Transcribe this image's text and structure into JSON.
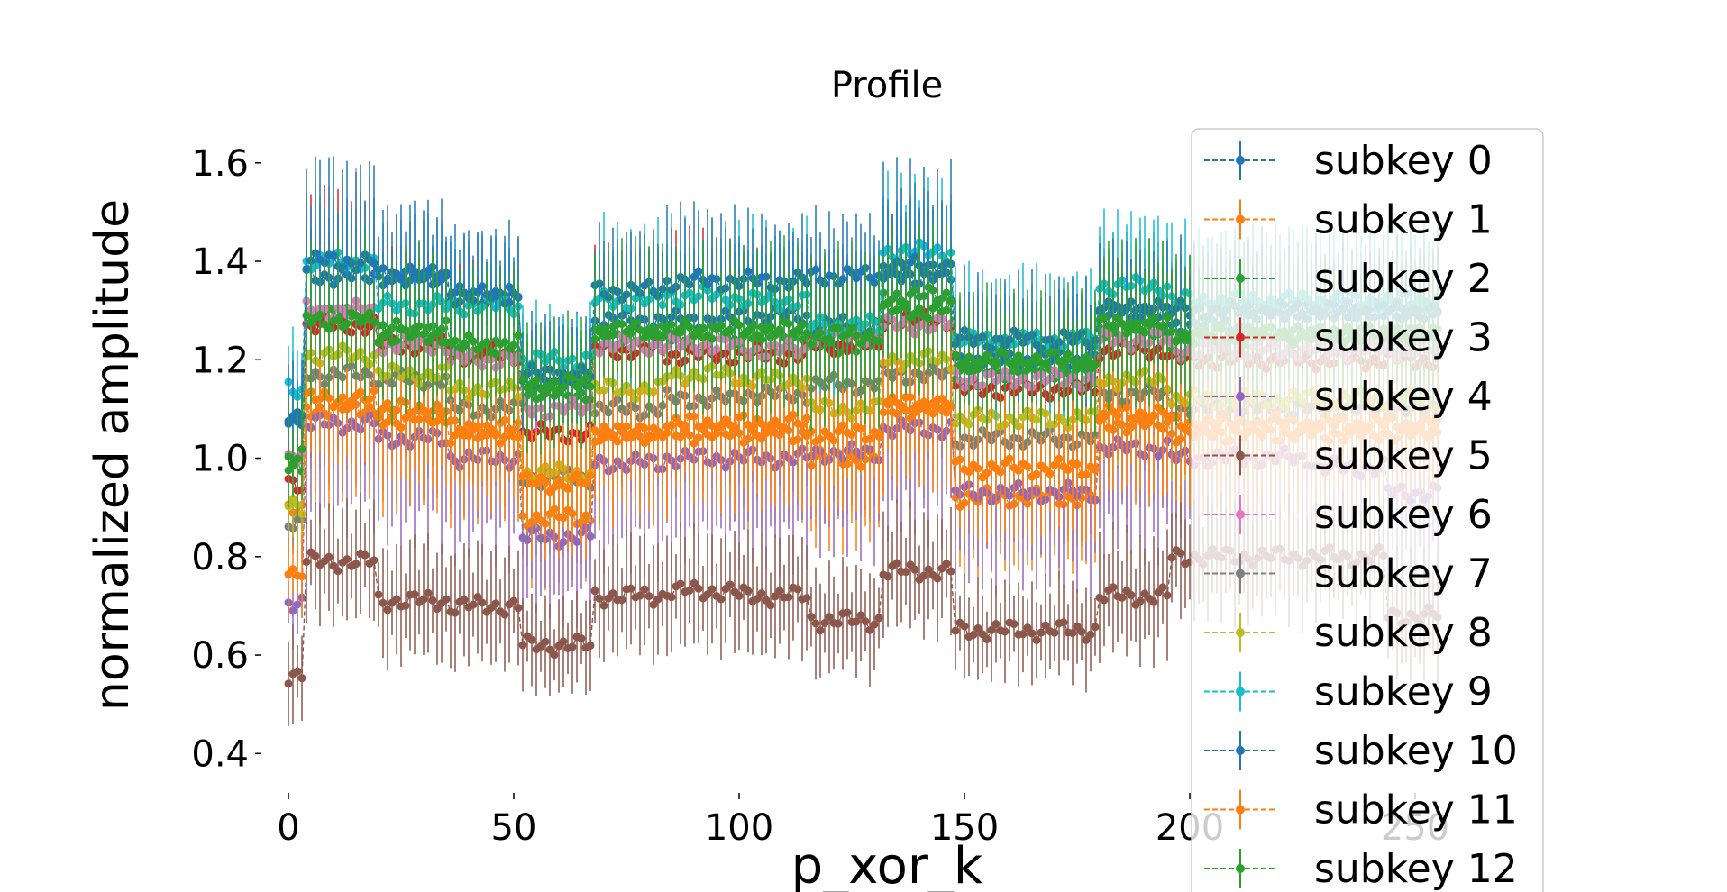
{
  "chart_data": {
    "type": "line",
    "title": "Profile",
    "xlabel": "p_xor_k",
    "ylabel": "normalized amplitude",
    "xlim": [
      -6,
      264
    ],
    "ylim": [
      0.32,
      1.66
    ],
    "xticks": [
      0,
      50,
      100,
      150,
      200,
      250
    ],
    "yticks": [
      0.4,
      0.6,
      0.8,
      1.0,
      1.2,
      1.4,
      1.6
    ],
    "grid": false,
    "legend_position": "upper-right",
    "x_breakpoints": [
      0,
      3,
      4,
      19,
      20,
      35,
      36,
      51,
      52,
      67,
      68,
      83,
      84,
      99,
      100,
      115,
      116,
      131,
      132,
      147,
      148,
      163,
      164,
      179,
      180,
      195,
      196,
      211,
      212,
      227,
      228,
      243,
      244,
      255
    ],
    "series": [
      {
        "name": "subkey 0",
        "color": "#1f77b4",
        "segment_values": [
          1.07,
          1.37,
          1.37,
          1.33,
          1.16,
          1.28,
          1.28,
          1.29,
          1.27,
          1.37,
          1.2,
          1.2,
          1.3,
          1.27,
          1.3,
          1.3,
          1.3
        ],
        "errors": [
          0.1,
          0.12,
          0.12,
          0.11,
          0.1,
          0.12,
          0.12,
          0.12,
          0.12,
          0.12,
          0.1,
          0.1,
          0.12,
          0.12,
          0.12,
          0.12,
          0.12
        ]
      },
      {
        "name": "subkey 1",
        "color": "#ff7f0e",
        "segment_values": [
          0.89,
          1.1,
          1.1,
          1.06,
          0.88,
          1.05,
          1.05,
          1.05,
          1.0,
          1.1,
          0.92,
          0.92,
          1.07,
          1.05,
          1.05,
          1.05,
          1.05
        ],
        "errors": [
          0.08,
          0.14,
          0.14,
          0.13,
          0.1,
          0.14,
          0.14,
          0.14,
          0.14,
          0.14,
          0.12,
          0.12,
          0.14,
          0.14,
          0.14,
          0.14,
          0.14
        ]
      },
      {
        "name": "subkey 2",
        "color": "#2ca02c",
        "segment_values": [
          0.98,
          1.29,
          1.26,
          1.22,
          1.13,
          1.25,
          1.25,
          1.25,
          1.23,
          1.33,
          1.18,
          1.18,
          1.26,
          1.24,
          1.25,
          1.25,
          1.25
        ],
        "errors": [
          0.1,
          0.13,
          0.13,
          0.12,
          0.1,
          0.13,
          0.13,
          0.13,
          0.13,
          0.13,
          0.11,
          0.11,
          0.13,
          0.13,
          0.13,
          0.13,
          0.13
        ]
      },
      {
        "name": "subkey 3",
        "color": "#d62728",
        "segment_values": [
          0.95,
          1.27,
          1.23,
          1.21,
          1.05,
          1.22,
          1.21,
          1.21,
          1.23,
          1.28,
          1.14,
          1.14,
          1.22,
          1.2,
          1.2,
          1.2,
          1.2
        ],
        "errors": [
          0.1,
          0.2,
          0.14,
          0.14,
          0.12,
          0.16,
          0.2,
          0.16,
          0.14,
          0.15,
          0.13,
          0.13,
          0.15,
          0.15,
          0.15,
          0.15,
          0.15
        ]
      },
      {
        "name": "subkey 4",
        "color": "#9467bd",
        "segment_values": [
          0.71,
          1.07,
          1.04,
          1.0,
          0.84,
          0.99,
          1.0,
          1.0,
          1.01,
          1.06,
          0.93,
          0.93,
          1.02,
          1.0,
          1.0,
          0.98,
          0.93
        ],
        "errors": [
          0.06,
          0.17,
          0.17,
          0.16,
          0.13,
          0.17,
          0.17,
          0.17,
          0.16,
          0.17,
          0.15,
          0.15,
          0.17,
          0.17,
          0.17,
          0.17,
          0.17
        ]
      },
      {
        "name": "subkey 5",
        "color": "#8c564b",
        "segment_values": [
          0.56,
          0.79,
          0.71,
          0.7,
          0.62,
          0.72,
          0.73,
          0.72,
          0.67,
          0.77,
          0.65,
          0.65,
          0.72,
          0.8,
          0.8,
          0.8,
          0.68
        ],
        "errors": [
          0.08,
          0.1,
          0.1,
          0.1,
          0.08,
          0.1,
          0.1,
          0.1,
          0.09,
          0.1,
          0.08,
          0.08,
          0.1,
          0.1,
          0.1,
          0.1,
          0.1
        ]
      },
      {
        "name": "subkey 6",
        "color": "#e377c2",
        "segment_values": [
          1.0,
          1.3,
          1.23,
          1.2,
          1.1,
          1.23,
          1.23,
          1.22,
          1.25,
          1.27,
          1.16,
          1.16,
          1.24,
          1.22,
          1.22,
          1.22,
          1.22
        ],
        "errors": [
          0.1,
          0.2,
          0.13,
          0.13,
          0.11,
          0.14,
          0.14,
          0.14,
          0.13,
          0.14,
          0.12,
          0.12,
          0.14,
          0.14,
          0.14,
          0.14,
          0.14
        ]
      },
      {
        "name": "subkey 7",
        "color": "#7f7f7f",
        "segment_values": [
          0.86,
          1.17,
          1.16,
          1.1,
          0.96,
          1.1,
          1.12,
          1.13,
          1.15,
          1.17,
          1.04,
          1.04,
          1.13,
          1.1,
          1.1,
          1.1,
          1.1
        ],
        "errors": [
          0.08,
          0.12,
          0.12,
          0.11,
          0.09,
          0.12,
          0.12,
          0.12,
          0.11,
          0.12,
          0.1,
          0.1,
          0.12,
          0.12,
          0.12,
          0.12,
          0.12
        ]
      },
      {
        "name": "subkey 8",
        "color": "#bcbd22",
        "segment_values": [
          0.9,
          1.21,
          1.17,
          1.14,
          0.97,
          1.14,
          1.17,
          1.16,
          1.1,
          1.2,
          1.08,
          1.08,
          1.16,
          1.12,
          1.12,
          1.12,
          1.12
        ],
        "errors": [
          0.08,
          0.12,
          0.12,
          0.11,
          0.09,
          0.12,
          0.12,
          0.12,
          0.11,
          0.12,
          0.1,
          0.1,
          0.12,
          0.12,
          0.12,
          0.12,
          0.12
        ]
      },
      {
        "name": "subkey 9",
        "color": "#17becf",
        "segment_values": [
          1.14,
          1.4,
          1.31,
          1.31,
          1.2,
          1.32,
          1.33,
          1.32,
          1.27,
          1.42,
          1.24,
          1.24,
          1.35,
          1.32,
          1.32,
          1.32,
          1.32
        ],
        "errors": [
          0.1,
          0.09,
          0.09,
          0.09,
          0.08,
          0.12,
          0.12,
          0.12,
          0.12,
          0.12,
          0.11,
          0.11,
          0.12,
          0.12,
          0.12,
          0.12,
          0.12
        ]
      },
      {
        "name": "subkey 10",
        "color": "#1f77b4",
        "segment_values": [
          1.09,
          1.4,
          1.37,
          1.33,
          1.17,
          1.34,
          1.36,
          1.36,
          1.37,
          1.39,
          1.24,
          1.24,
          1.3,
          1.3,
          1.3,
          1.3,
          1.3
        ],
        "errors": [
          0.1,
          0.17,
          0.1,
          0.1,
          0.09,
          0.1,
          0.12,
          0.1,
          0.1,
          0.16,
          0.1,
          0.1,
          0.1,
          0.1,
          0.1,
          0.1,
          0.1
        ]
      },
      {
        "name": "subkey 11",
        "color": "#ff7f0e",
        "segment_values": [
          0.77,
          1.12,
          1.08,
          1.05,
          0.95,
          1.05,
          1.07,
          1.07,
          1.05,
          1.11,
          0.98,
          0.98,
          1.09,
          1.07,
          1.07,
          1.07,
          1.07
        ],
        "errors": [
          0.06,
          0.14,
          0.14,
          0.13,
          0.12,
          0.14,
          0.14,
          0.14,
          0.14,
          0.14,
          0.12,
          0.12,
          0.14,
          0.14,
          0.14,
          0.14,
          0.14
        ]
      },
      {
        "name": "subkey 12",
        "color": "#2ca02c",
        "segment_values": [
          1.0,
          1.28,
          1.25,
          1.23,
          1.15,
          1.26,
          1.26,
          1.26,
          1.25,
          1.3,
          1.2,
          1.2,
          1.27,
          1.25,
          1.25,
          1.25,
          1.25
        ],
        "errors": [
          0.1,
          0.13,
          0.13,
          0.12,
          0.1,
          0.13,
          0.13,
          0.13,
          0.13,
          0.13,
          0.11,
          0.11,
          0.13,
          0.13,
          0.13,
          0.13,
          0.13
        ]
      }
    ]
  }
}
